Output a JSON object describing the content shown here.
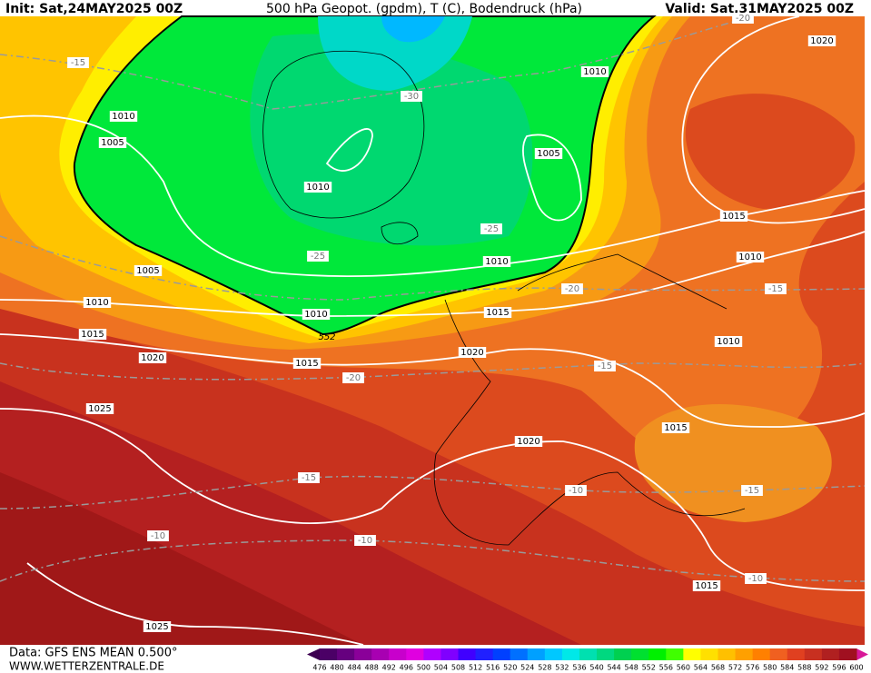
{
  "header": {
    "init": "Init: Sat,24MAY2025 00Z",
    "title": "500 hPa Geopot. (gpdm), T (C), Bodendruck (hPa)",
    "valid": "Valid: Sat,31MAY2025 00Z"
  },
  "isobar_labels": [
    "1010",
    "1005",
    "1010",
    "1020",
    "1005",
    "1010",
    "1015",
    "1010",
    "1010",
    "1005",
    "1010",
    "1010",
    "1015",
    "1015",
    "1010",
    "1020",
    "1020",
    "1015",
    "1025",
    "1015",
    "1020",
    "1015",
    "1025"
  ],
  "temperature_labels": [
    "-15",
    "-20",
    "-30",
    "-25",
    "-25",
    "-20",
    "-15",
    "-20",
    "-15",
    "-15",
    "-10",
    "-15",
    "-10",
    "-10",
    "-10"
  ],
  "geopotential_label": "552",
  "footer": {
    "data": "Data: GFS ENS MEAN 0.500°",
    "site": "WWW.WETTERZENTRALE.DE"
  },
  "colorbar": {
    "labels": [
      476,
      480,
      484,
      488,
      492,
      496,
      500,
      504,
      508,
      512,
      516,
      520,
      524,
      528,
      532,
      536,
      540,
      544,
      548,
      552,
      556,
      560,
      564,
      568,
      572,
      576,
      580,
      584,
      588,
      592,
      596,
      600
    ],
    "colors": [
      "#4b0066",
      "#66007f",
      "#8a0099",
      "#a800b2",
      "#c800cc",
      "#e000e0",
      "#b000ff",
      "#8000ff",
      "#4000ff",
      "#2020ff",
      "#0040ff",
      "#0070ff",
      "#00a0ff",
      "#00c8ff",
      "#00e8e8",
      "#00e0b0",
      "#00d880",
      "#00d050",
      "#00e030",
      "#00f000",
      "#40ff00",
      "#ffff00",
      "#ffe000",
      "#ffc000",
      "#ffa000",
      "#ff8000",
      "#f06020",
      "#e04020",
      "#c83020",
      "#b02020",
      "#a01020"
    ]
  }
}
